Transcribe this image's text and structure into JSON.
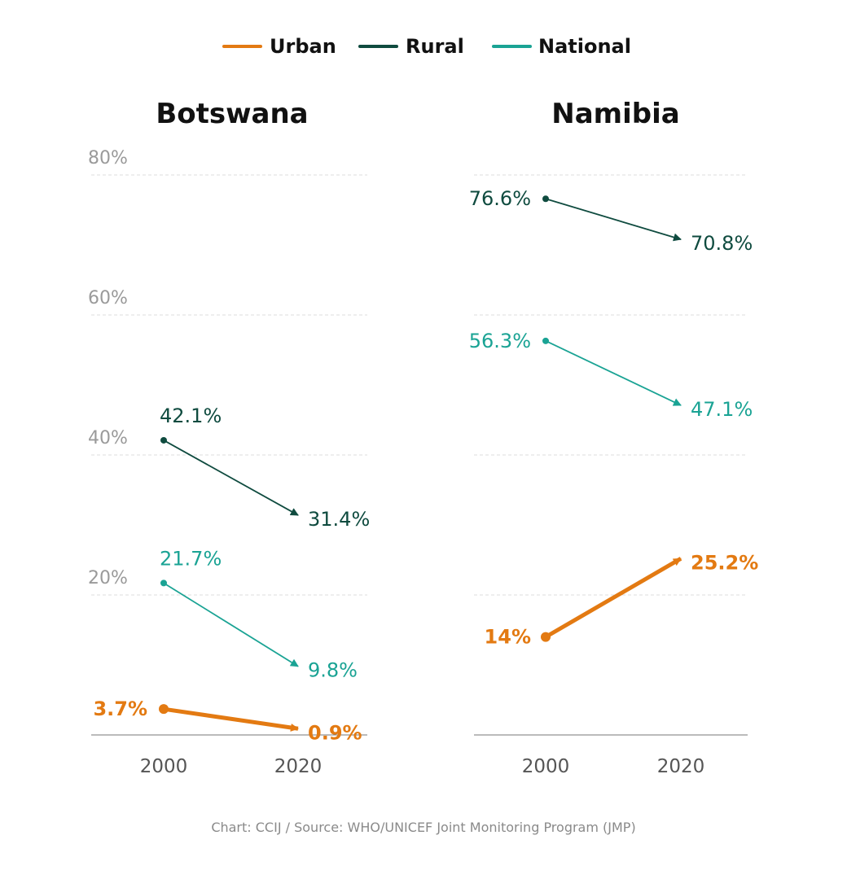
{
  "legend": {
    "items": [
      {
        "label": "Urban",
        "color": "#e37a12"
      },
      {
        "label": "Rural",
        "color": "#0f4b3f"
      },
      {
        "label": "National",
        "color": "#1aa394"
      }
    ]
  },
  "source": "Chart: CCIJ / Source: WHO/UNICEF Joint Monitoring Program (JMP)",
  "chart_data": [
    {
      "type": "line",
      "title": "Botswana",
      "x": [
        "2000",
        "2020"
      ],
      "ylim": [
        0,
        80
      ],
      "yticks": [
        "20%",
        "40%",
        "60%",
        "80%"
      ],
      "grid": true,
      "series": [
        {
          "name": "Urban",
          "values": [
            3.7,
            0.9
          ],
          "labels": [
            "3.7%",
            "0.9%"
          ]
        },
        {
          "name": "Rural",
          "values": [
            42.1,
            31.4
          ],
          "labels": [
            "42.1%",
            "31.4%"
          ]
        },
        {
          "name": "National",
          "values": [
            21.7,
            9.8
          ],
          "labels": [
            "21.7%",
            "9.8%"
          ]
        }
      ]
    },
    {
      "type": "line",
      "title": "Namibia",
      "x": [
        "2000",
        "2020"
      ],
      "ylim": [
        0,
        80
      ],
      "yticks": [],
      "grid": true,
      "series": [
        {
          "name": "Urban",
          "values": [
            14,
            25.2
          ],
          "labels": [
            "14%",
            "25.2%"
          ]
        },
        {
          "name": "Rural",
          "values": [
            76.6,
            70.8
          ],
          "labels": [
            "76.6%",
            "70.8%"
          ]
        },
        {
          "name": "National",
          "values": [
            56.3,
            47.1
          ],
          "labels": [
            "56.3%",
            "47.1%"
          ]
        }
      ]
    }
  ]
}
